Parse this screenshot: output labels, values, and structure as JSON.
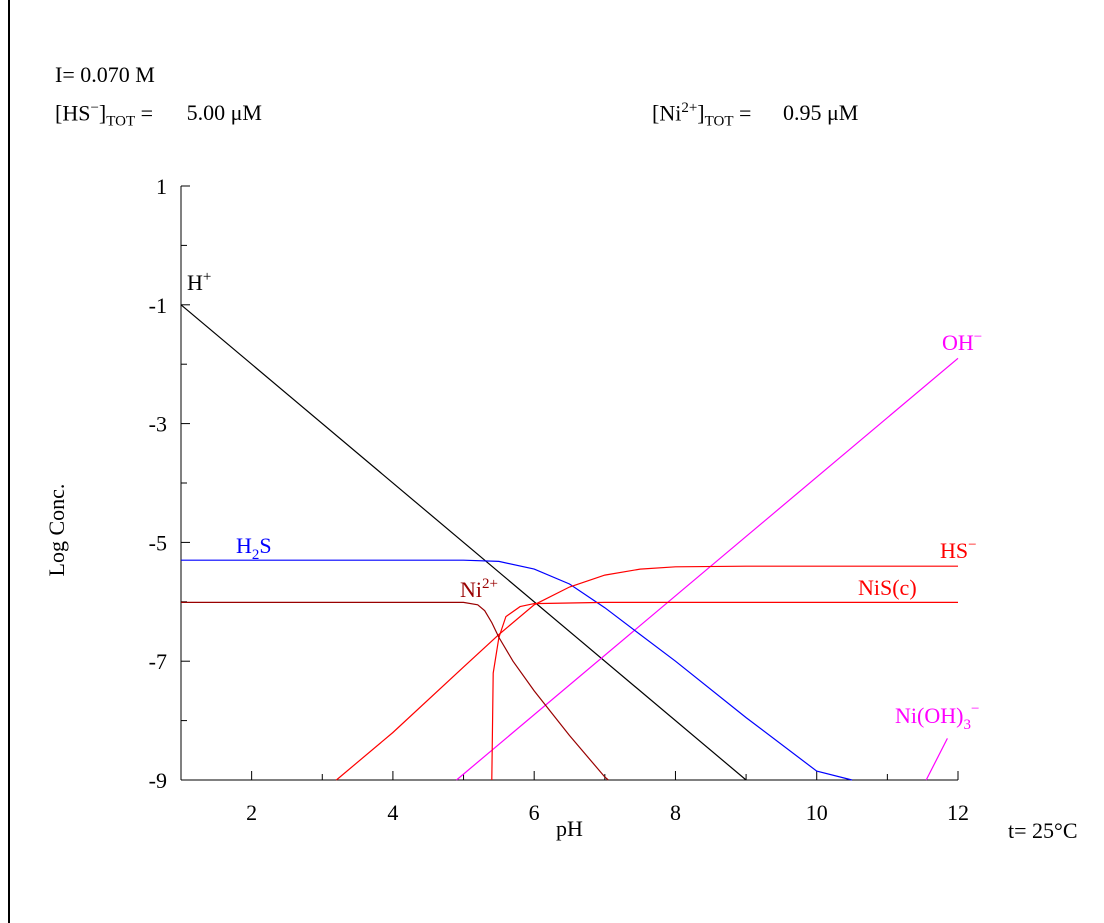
{
  "conditions": {
    "ionic_strength": "I= 0.070 M",
    "hs_total_label": "[HS",
    "hs_total_sup": "−",
    "hs_total_close": "]",
    "hs_total_sub": "TOT",
    "hs_total_eq": " =",
    "hs_total_value": "5.00 μM",
    "ni_total_label": "[Ni",
    "ni_total_sup": "2+",
    "ni_total_close": "]",
    "ni_total_sub": "TOT",
    "ni_total_eq": " =",
    "ni_total_value": "0.95 μM",
    "temperature": "t= 25°C"
  },
  "chart_data": {
    "type": "line",
    "xlabel": "pH",
    "ylabel": "Log Conc.",
    "xlim": [
      1,
      12
    ],
    "ylim": [
      -9,
      1
    ],
    "x_ticks": [
      2,
      4,
      6,
      8,
      10,
      12
    ],
    "y_ticks": [
      1,
      -1,
      -3,
      -5,
      -7,
      -9
    ],
    "grid": false,
    "series": [
      {
        "name": "H+",
        "label": "H",
        "label_sup": "+",
        "color": "#000000",
        "points": [
          [
            1,
            -1
          ],
          [
            9,
            -9
          ]
        ]
      },
      {
        "name": "OH-",
        "label": "OH",
        "label_sup": "−",
        "color": "#ff00ff",
        "points": [
          [
            4.9,
            -9
          ],
          [
            12,
            -1.9
          ]
        ]
      },
      {
        "name": "H2S",
        "label": "H",
        "label_sub": "2",
        "label_after": "S",
        "color": "#0000ff",
        "points": [
          [
            1,
            -5.3
          ],
          [
            4,
            -5.3
          ],
          [
            5.0,
            -5.3
          ],
          [
            5.5,
            -5.32
          ],
          [
            6.0,
            -5.45
          ],
          [
            6.5,
            -5.7
          ],
          [
            7.0,
            -6.1
          ],
          [
            7.5,
            -6.55
          ],
          [
            8.0,
            -7.0
          ],
          [
            9.0,
            -7.95
          ],
          [
            10.0,
            -8.85
          ],
          [
            10.5,
            -9
          ]
        ]
      },
      {
        "name": "HS-",
        "label": "HS",
        "label_sup": "−",
        "color": "#ff0000",
        "points": [
          [
            3.2,
            -9
          ],
          [
            4.0,
            -8.2
          ],
          [
            5.0,
            -7.1
          ],
          [
            5.5,
            -6.55
          ],
          [
            6.0,
            -6.05
          ],
          [
            6.5,
            -5.75
          ],
          [
            7.0,
            -5.55
          ],
          [
            7.5,
            -5.45
          ],
          [
            8.0,
            -5.41
          ],
          [
            9.0,
            -5.4
          ],
          [
            12,
            -5.4
          ]
        ]
      },
      {
        "name": "NiS(c)",
        "label": "NiS(c)",
        "color": "#ff0000",
        "points": [
          [
            5.4,
            -9
          ],
          [
            5.42,
            -7.2
          ],
          [
            5.5,
            -6.6
          ],
          [
            5.6,
            -6.25
          ],
          [
            5.8,
            -6.08
          ],
          [
            6.0,
            -6.03
          ],
          [
            7.0,
            -6.01
          ],
          [
            12,
            -6.01
          ]
        ]
      },
      {
        "name": "Ni2+",
        "label": "Ni",
        "label_sup": "2+",
        "color": "#990000",
        "points": [
          [
            1,
            -6.01
          ],
          [
            5.0,
            -6.01
          ],
          [
            5.2,
            -6.05
          ],
          [
            5.3,
            -6.15
          ],
          [
            5.4,
            -6.35
          ],
          [
            5.5,
            -6.6
          ],
          [
            5.7,
            -7.0
          ],
          [
            6.0,
            -7.5
          ],
          [
            6.5,
            -8.25
          ],
          [
            7.0,
            -8.95
          ],
          [
            7.05,
            -9
          ]
        ]
      },
      {
        "name": "Ni(OH)3-",
        "label": "Ni(OH)",
        "label_sub": "3",
        "label_sup": "−",
        "color": "#ff00ff",
        "points": [
          [
            11.55,
            -9
          ],
          [
            11.85,
            -8.3
          ]
        ]
      }
    ]
  }
}
